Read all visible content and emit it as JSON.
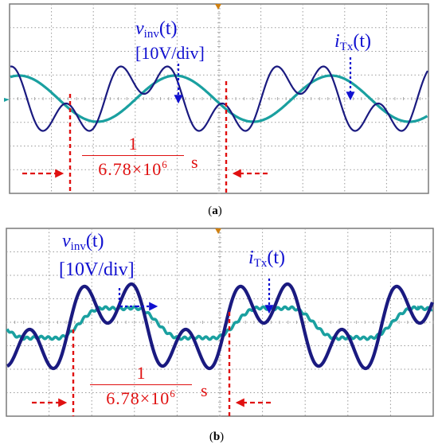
{
  "chart_data": [
    {
      "type": "line",
      "panel": "a",
      "caption_letter": "a",
      "series": [
        {
          "name": "v",
          "name_sub": "inv",
          "name_arg": "(t)",
          "scale": "[10V/div]",
          "color": "#1a1a80"
        },
        {
          "name": "i",
          "name_sub": "Tx",
          "name_arg": "(t)",
          "color": "#1aa0a0"
        }
      ],
      "period_annotation": {
        "numerator": "1",
        "denominator_base": "6.78×10",
        "denominator_exp": "6",
        "unit": "s"
      },
      "grid": true
    },
    {
      "type": "line",
      "panel": "b",
      "caption_letter": "b",
      "series": [
        {
          "name": "v",
          "name_sub": "inv",
          "name_arg": "(t)",
          "scale": "[10V/div]",
          "color": "#1a1a80"
        },
        {
          "name": "i",
          "name_sub": "Tx",
          "name_arg": "(t)",
          "color": "#1aa0a0"
        }
      ],
      "period_annotation": {
        "numerator": "1",
        "denominator_base": "6.78×10",
        "denominator_exp": "6",
        "unit": "s"
      },
      "grid": true
    }
  ],
  "colors": {
    "voltage": "#1a1a80",
    "current": "#1aa0a0",
    "annotation_blue": "#1010d0",
    "annotation_red": "#e01010",
    "grid": "#9a9a9a",
    "frame": "#7a7a7a"
  }
}
